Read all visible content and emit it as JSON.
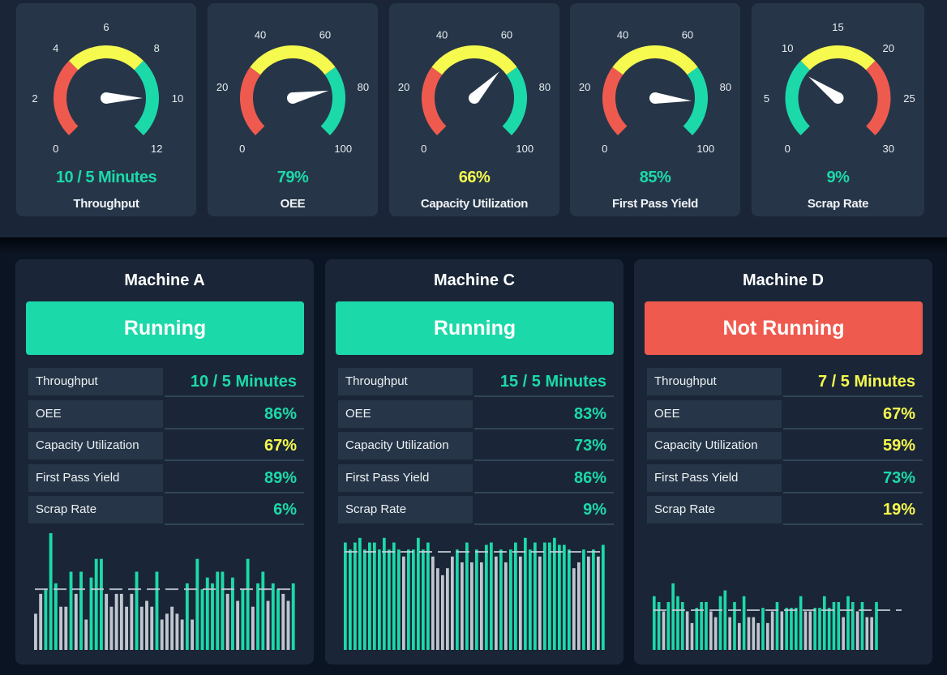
{
  "colors": {
    "green": "#1cd9a9",
    "yellow": "#f6f94e",
    "red": "#ef5a4f",
    "gray": "#c1c6ce",
    "threshold": "#c9d0d8"
  },
  "gauges": [
    {
      "label": "Throughput",
      "value_text": "10 / 5 Minutes",
      "value": 10,
      "min": 0,
      "max": 12,
      "ticks": [
        "0",
        "2",
        "4",
        "6",
        "8",
        "10",
        "12"
      ],
      "zones": [
        "red",
        "yellow",
        "green"
      ],
      "zone_bounds": [
        4,
        8
      ],
      "value_color": "green"
    },
    {
      "label": "OEE",
      "value_text": "79%",
      "value": 79,
      "min": 0,
      "max": 100,
      "ticks": [
        "0",
        "20",
        "40",
        "60",
        "80",
        "100"
      ],
      "zones": [
        "red",
        "yellow",
        "green"
      ],
      "zone_bounds": [
        30,
        70
      ],
      "value_color": "green"
    },
    {
      "label": "Capacity Utilization",
      "value_text": "66%",
      "value": 66,
      "min": 0,
      "max": 100,
      "ticks": [
        "0",
        "20",
        "40",
        "60",
        "80",
        "100"
      ],
      "zones": [
        "red",
        "yellow",
        "green"
      ],
      "zone_bounds": [
        30,
        70
      ],
      "value_color": "yellow"
    },
    {
      "label": "First Pass Yield",
      "value_text": "85%",
      "value": 85,
      "min": 0,
      "max": 100,
      "ticks": [
        "0",
        "20",
        "40",
        "60",
        "80",
        "100"
      ],
      "zones": [
        "red",
        "yellow",
        "green"
      ],
      "zone_bounds": [
        30,
        70
      ],
      "value_color": "green"
    },
    {
      "label": "Scrap Rate",
      "value_text": "9%",
      "value": 9,
      "min": 0,
      "max": 30,
      "ticks": [
        "0",
        "5",
        "10",
        "15",
        "20",
        "25",
        "30"
      ],
      "zones": [
        "green",
        "yellow",
        "red"
      ],
      "zone_bounds": [
        10,
        20
      ],
      "value_color": "green"
    }
  ],
  "machines": [
    {
      "name": "Machine A",
      "status": "Running",
      "status_color": "green",
      "metrics": [
        {
          "label": "Throughput",
          "value": "10 / 5 Minutes",
          "color": "green"
        },
        {
          "label": "OEE",
          "value": "86%",
          "color": "green"
        },
        {
          "label": "Capacity Utilization",
          "value": "67%",
          "color": "yellow"
        },
        {
          "label": "First Pass Yield",
          "value": "89%",
          "color": "green"
        },
        {
          "label": "Scrap Rate",
          "value": "6%",
          "color": "green"
        }
      ],
      "chart": {
        "threshold": 52,
        "bars": [
          31,
          48,
          52,
          100,
          57,
          37,
          37,
          67,
          48,
          67,
          26,
          62,
          78,
          78,
          48,
          37,
          48,
          48,
          37,
          48,
          67,
          37,
          42,
          37,
          67,
          26,
          31,
          37,
          31,
          26,
          57,
          26,
          78,
          52,
          62,
          57,
          67,
          67,
          48,
          62,
          42,
          52,
          78,
          37,
          57,
          67,
          42,
          57,
          52,
          48,
          42,
          57
        ]
      }
    },
    {
      "name": "Machine C",
      "status": "Running",
      "status_color": "green",
      "metrics": [
        {
          "label": "Throughput",
          "value": "15 / 5 Minutes",
          "color": "green"
        },
        {
          "label": "OEE",
          "value": "83%",
          "color": "green"
        },
        {
          "label": "Capacity Utilization",
          "value": "73%",
          "color": "green"
        },
        {
          "label": "First Pass Yield",
          "value": "86%",
          "color": "green"
        },
        {
          "label": "Scrap Rate",
          "value": "9%",
          "color": "green"
        }
      ],
      "chart": {
        "threshold": 84,
        "bars": [
          92,
          86,
          92,
          96,
          86,
          92,
          92,
          86,
          96,
          86,
          92,
          86,
          80,
          86,
          86,
          96,
          86,
          92,
          80,
          70,
          64,
          70,
          80,
          86,
          75,
          92,
          75,
          86,
          75,
          90,
          92,
          80,
          86,
          75,
          86,
          92,
          80,
          96,
          86,
          92,
          80,
          92,
          92,
          96,
          90,
          90,
          86,
          70,
          75,
          86,
          80,
          86,
          80,
          90
        ]
      }
    },
    {
      "name": "Machine D",
      "status": "Not Running",
      "status_color": "red",
      "metrics": [
        {
          "label": "Throughput",
          "value": "7 / 5 Minutes",
          "color": "yellow"
        },
        {
          "label": "OEE",
          "value": "67%",
          "color": "yellow"
        },
        {
          "label": "Capacity Utilization",
          "value": "59%",
          "color": "yellow"
        },
        {
          "label": "First Pass Yield",
          "value": "73%",
          "color": "green"
        },
        {
          "label": "Scrap Rate",
          "value": "19%",
          "color": "yellow"
        }
      ],
      "chart": {
        "threshold": 34,
        "bars": [
          46,
          41,
          33,
          41,
          57,
          46,
          41,
          33,
          23,
          36,
          41,
          41,
          33,
          28,
          46,
          51,
          28,
          41,
          23,
          46,
          28,
          28,
          23,
          36,
          23,
          33,
          41,
          33,
          36,
          36,
          36,
          46,
          33,
          33,
          36,
          36,
          46,
          36,
          41,
          41,
          28,
          46,
          41,
          33,
          41,
          28,
          28,
          41
        ]
      }
    }
  ]
}
